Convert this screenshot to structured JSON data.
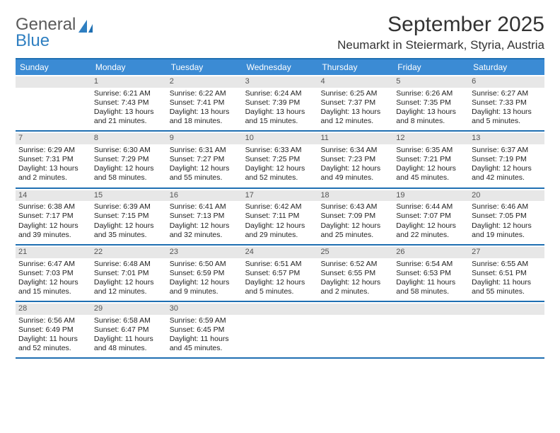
{
  "logo": {
    "word1": "General",
    "word2": "Blue"
  },
  "title": "September 2025",
  "location": "Neumarkt in Steiermark, Styria, Austria",
  "colors": {
    "header_bg": "#3b8bd4",
    "header_border": "#1f6fb2",
    "daynum_bg": "#e7e7e7",
    "logo_gray": "#5a5a5a",
    "logo_blue": "#2f7fc1"
  },
  "day_names": [
    "Sunday",
    "Monday",
    "Tuesday",
    "Wednesday",
    "Thursday",
    "Friday",
    "Saturday"
  ],
  "weeks": [
    [
      {
        "n": "",
        "lines": []
      },
      {
        "n": "1",
        "lines": [
          "Sunrise: 6:21 AM",
          "Sunset: 7:43 PM",
          "Daylight: 13 hours",
          "and 21 minutes."
        ]
      },
      {
        "n": "2",
        "lines": [
          "Sunrise: 6:22 AM",
          "Sunset: 7:41 PM",
          "Daylight: 13 hours",
          "and 18 minutes."
        ]
      },
      {
        "n": "3",
        "lines": [
          "Sunrise: 6:24 AM",
          "Sunset: 7:39 PM",
          "Daylight: 13 hours",
          "and 15 minutes."
        ]
      },
      {
        "n": "4",
        "lines": [
          "Sunrise: 6:25 AM",
          "Sunset: 7:37 PM",
          "Daylight: 13 hours",
          "and 12 minutes."
        ]
      },
      {
        "n": "5",
        "lines": [
          "Sunrise: 6:26 AM",
          "Sunset: 7:35 PM",
          "Daylight: 13 hours",
          "and 8 minutes."
        ]
      },
      {
        "n": "6",
        "lines": [
          "Sunrise: 6:27 AM",
          "Sunset: 7:33 PM",
          "Daylight: 13 hours",
          "and 5 minutes."
        ]
      }
    ],
    [
      {
        "n": "7",
        "lines": [
          "Sunrise: 6:29 AM",
          "Sunset: 7:31 PM",
          "Daylight: 13 hours",
          "and 2 minutes."
        ]
      },
      {
        "n": "8",
        "lines": [
          "Sunrise: 6:30 AM",
          "Sunset: 7:29 PM",
          "Daylight: 12 hours",
          "and 58 minutes."
        ]
      },
      {
        "n": "9",
        "lines": [
          "Sunrise: 6:31 AM",
          "Sunset: 7:27 PM",
          "Daylight: 12 hours",
          "and 55 minutes."
        ]
      },
      {
        "n": "10",
        "lines": [
          "Sunrise: 6:33 AM",
          "Sunset: 7:25 PM",
          "Daylight: 12 hours",
          "and 52 minutes."
        ]
      },
      {
        "n": "11",
        "lines": [
          "Sunrise: 6:34 AM",
          "Sunset: 7:23 PM",
          "Daylight: 12 hours",
          "and 49 minutes."
        ]
      },
      {
        "n": "12",
        "lines": [
          "Sunrise: 6:35 AM",
          "Sunset: 7:21 PM",
          "Daylight: 12 hours",
          "and 45 minutes."
        ]
      },
      {
        "n": "13",
        "lines": [
          "Sunrise: 6:37 AM",
          "Sunset: 7:19 PM",
          "Daylight: 12 hours",
          "and 42 minutes."
        ]
      }
    ],
    [
      {
        "n": "14",
        "lines": [
          "Sunrise: 6:38 AM",
          "Sunset: 7:17 PM",
          "Daylight: 12 hours",
          "and 39 minutes."
        ]
      },
      {
        "n": "15",
        "lines": [
          "Sunrise: 6:39 AM",
          "Sunset: 7:15 PM",
          "Daylight: 12 hours",
          "and 35 minutes."
        ]
      },
      {
        "n": "16",
        "lines": [
          "Sunrise: 6:41 AM",
          "Sunset: 7:13 PM",
          "Daylight: 12 hours",
          "and 32 minutes."
        ]
      },
      {
        "n": "17",
        "lines": [
          "Sunrise: 6:42 AM",
          "Sunset: 7:11 PM",
          "Daylight: 12 hours",
          "and 29 minutes."
        ]
      },
      {
        "n": "18",
        "lines": [
          "Sunrise: 6:43 AM",
          "Sunset: 7:09 PM",
          "Daylight: 12 hours",
          "and 25 minutes."
        ]
      },
      {
        "n": "19",
        "lines": [
          "Sunrise: 6:44 AM",
          "Sunset: 7:07 PM",
          "Daylight: 12 hours",
          "and 22 minutes."
        ]
      },
      {
        "n": "20",
        "lines": [
          "Sunrise: 6:46 AM",
          "Sunset: 7:05 PM",
          "Daylight: 12 hours",
          "and 19 minutes."
        ]
      }
    ],
    [
      {
        "n": "21",
        "lines": [
          "Sunrise: 6:47 AM",
          "Sunset: 7:03 PM",
          "Daylight: 12 hours",
          "and 15 minutes."
        ]
      },
      {
        "n": "22",
        "lines": [
          "Sunrise: 6:48 AM",
          "Sunset: 7:01 PM",
          "Daylight: 12 hours",
          "and 12 minutes."
        ]
      },
      {
        "n": "23",
        "lines": [
          "Sunrise: 6:50 AM",
          "Sunset: 6:59 PM",
          "Daylight: 12 hours",
          "and 9 minutes."
        ]
      },
      {
        "n": "24",
        "lines": [
          "Sunrise: 6:51 AM",
          "Sunset: 6:57 PM",
          "Daylight: 12 hours",
          "and 5 minutes."
        ]
      },
      {
        "n": "25",
        "lines": [
          "Sunrise: 6:52 AM",
          "Sunset: 6:55 PM",
          "Daylight: 12 hours",
          "and 2 minutes."
        ]
      },
      {
        "n": "26",
        "lines": [
          "Sunrise: 6:54 AM",
          "Sunset: 6:53 PM",
          "Daylight: 11 hours",
          "and 58 minutes."
        ]
      },
      {
        "n": "27",
        "lines": [
          "Sunrise: 6:55 AM",
          "Sunset: 6:51 PM",
          "Daylight: 11 hours",
          "and 55 minutes."
        ]
      }
    ],
    [
      {
        "n": "28",
        "lines": [
          "Sunrise: 6:56 AM",
          "Sunset: 6:49 PM",
          "Daylight: 11 hours",
          "and 52 minutes."
        ]
      },
      {
        "n": "29",
        "lines": [
          "Sunrise: 6:58 AM",
          "Sunset: 6:47 PM",
          "Daylight: 11 hours",
          "and 48 minutes."
        ]
      },
      {
        "n": "30",
        "lines": [
          "Sunrise: 6:59 AM",
          "Sunset: 6:45 PM",
          "Daylight: 11 hours",
          "and 45 minutes."
        ]
      },
      {
        "n": "",
        "lines": []
      },
      {
        "n": "",
        "lines": []
      },
      {
        "n": "",
        "lines": []
      },
      {
        "n": "",
        "lines": []
      }
    ]
  ]
}
